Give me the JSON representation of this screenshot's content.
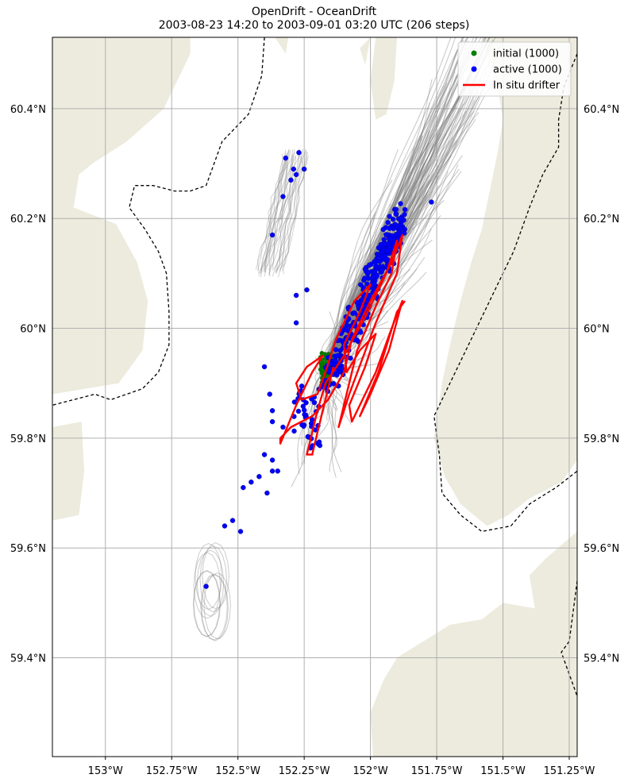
{
  "chart_data": {
    "type": "map",
    "title": "OpenDrift - OceanDrift",
    "subtitle": "2003-08-23 14:20 to 2003-09-01 03:20 UTC (206 steps)",
    "xlim": [
      -153.2,
      -151.22
    ],
    "ylim": [
      59.22,
      60.53
    ],
    "x_ticks": [
      -153,
      -152.75,
      -152.5,
      -152.25,
      -152,
      -151.75,
      -151.5,
      -151.25
    ],
    "x_tick_labels": [
      "153°W",
      "152.75°W",
      "152.5°W",
      "152.25°W",
      "152°W",
      "151.75°W",
      "151.5°W",
      "151.25°W"
    ],
    "y_ticks": [
      59.4,
      59.6,
      59.8,
      60.0,
      60.2,
      60.4
    ],
    "y_tick_labels": [
      "59.4°N",
      "59.6°N",
      "59.8°N",
      "60°N",
      "60.2°N",
      "60.4°N"
    ],
    "grid": true,
    "legend_position": "top-right",
    "legend": [
      {
        "label": "initial (1000)",
        "marker": "dot",
        "color": "#008000"
      },
      {
        "label": "active (1000)",
        "marker": "dot",
        "color": "#0000ff"
      },
      {
        "label": "In situ drifter",
        "marker": "line",
        "color": "#ff0000"
      }
    ],
    "colors": {
      "land": "#ecebdd",
      "ocean": "#ffffff",
      "trajectory": "#808080",
      "initial": "#008000",
      "active": "#0000ff",
      "drifter": "#ff0000",
      "grid": "#b0b0b0"
    },
    "initial_positions_center": {
      "lon": -152.17,
      "lat": 59.925
    },
    "drifter_track": [
      [
        -152.14,
        59.93
      ],
      [
        -152.2,
        59.81
      ],
      [
        -152.22,
        59.77
      ],
      [
        -152.24,
        59.77
      ],
      [
        -152.2,
        59.85
      ],
      [
        -152.17,
        59.9
      ],
      [
        -152.1,
        59.95
      ],
      [
        -152.02,
        60.02
      ],
      [
        -151.94,
        60.1
      ],
      [
        -151.9,
        60.16
      ],
      [
        -151.92,
        60.1
      ],
      [
        -151.98,
        60.04
      ],
      [
        -152.05,
        59.96
      ],
      [
        -152.12,
        59.82
      ],
      [
        -152.08,
        59.88
      ],
      [
        -151.98,
        60.01
      ],
      [
        -151.9,
        60.1
      ],
      [
        -151.88,
        60.17
      ],
      [
        -151.92,
        60.12
      ],
      [
        -152.0,
        60.05
      ],
      [
        -152.07,
        59.98
      ],
      [
        -152.1,
        59.92
      ],
      [
        -152.16,
        59.87
      ],
      [
        -152.22,
        59.84
      ],
      [
        -152.3,
        59.82
      ],
      [
        -152.34,
        59.8
      ],
      [
        -152.34,
        59.79
      ],
      [
        -152.28,
        59.86
      ],
      [
        -152.22,
        59.92
      ],
      [
        -152.18,
        59.95
      ],
      [
        -152.24,
        59.93
      ],
      [
        -152.28,
        59.9
      ],
      [
        -152.26,
        59.87
      ],
      [
        -152.2,
        59.88
      ],
      [
        -152.17,
        59.92
      ],
      [
        -152.13,
        59.98
      ],
      [
        -152.06,
        60.05
      ],
      [
        -152.0,
        60.08
      ],
      [
        -152.04,
        60.03
      ],
      [
        -152.1,
        59.97
      ],
      [
        -152.09,
        59.92
      ],
      [
        -152.04,
        59.96
      ],
      [
        -151.98,
        59.99
      ],
      [
        -152.02,
        59.93
      ],
      [
        -152.08,
        59.86
      ],
      [
        -152.07,
        59.83
      ],
      [
        -151.98,
        59.92
      ],
      [
        -151.92,
        60.0
      ],
      [
        -151.88,
        60.05
      ],
      [
        -151.93,
        59.96
      ],
      [
        -152.0,
        59.88
      ],
      [
        -152.04,
        59.84
      ],
      [
        -151.97,
        59.92
      ],
      [
        -151.9,
        60.03
      ],
      [
        -151.87,
        60.05
      ]
    ],
    "active_outliers": [
      [
        -152.32,
        60.31
      ],
      [
        -152.29,
        60.29
      ],
      [
        -152.27,
        60.32
      ],
      [
        -152.25,
        60.29
      ],
      [
        -152.3,
        60.27
      ],
      [
        -152.28,
        60.28
      ],
      [
        -152.33,
        60.24
      ],
      [
        -152.37,
        60.17
      ],
      [
        -152.28,
        60.06
      ],
      [
        -152.24,
        60.07
      ],
      [
        -152.28,
        60.01
      ],
      [
        -152.4,
        59.93
      ],
      [
        -152.38,
        59.88
      ],
      [
        -152.37,
        59.85
      ],
      [
        -152.37,
        59.83
      ],
      [
        -152.33,
        59.82
      ],
      [
        -152.4,
        59.77
      ],
      [
        -152.37,
        59.76
      ],
      [
        -152.35,
        59.74
      ],
      [
        -152.37,
        59.74
      ],
      [
        -152.42,
        59.73
      ],
      [
        -152.45,
        59.72
      ],
      [
        -152.48,
        59.71
      ],
      [
        -152.39,
        59.7
      ],
      [
        -152.52,
        59.65
      ],
      [
        -152.55,
        59.64
      ],
      [
        -152.49,
        59.63
      ],
      [
        -152.62,
        59.53
      ],
      [
        -151.77,
        60.23
      ]
    ]
  }
}
